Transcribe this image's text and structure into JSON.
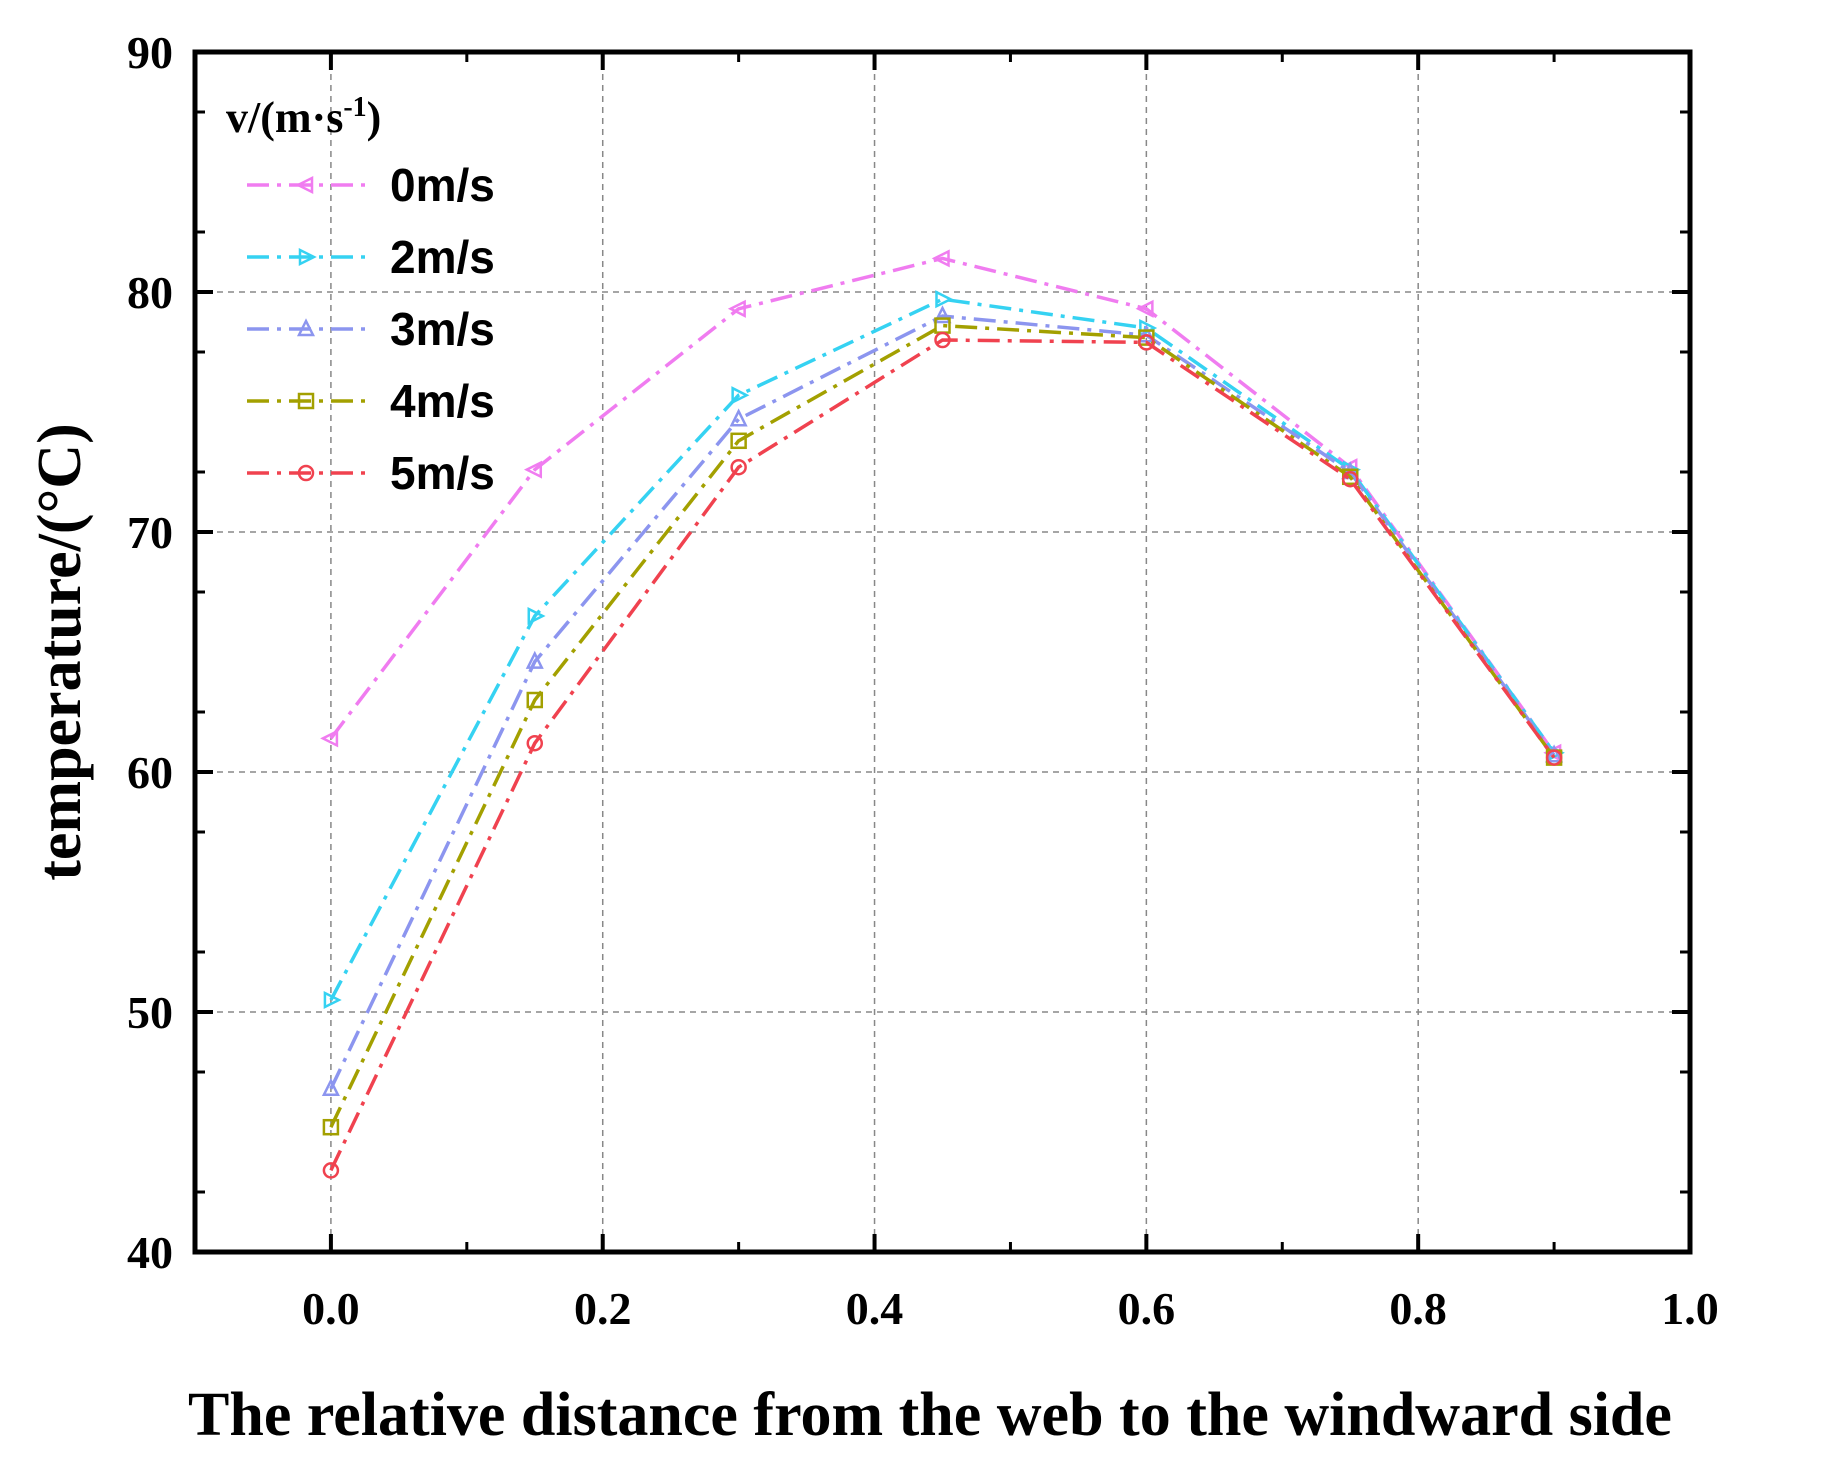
{
  "chart_data": {
    "type": "line",
    "title": "",
    "xlabel": "The relative distance from the web to the windward side",
    "ylabel": "temperature/(°C)",
    "xlim": [
      -0.1,
      1.0
    ],
    "ylim": [
      40,
      90
    ],
    "xticks": [
      "0.0",
      "0.2",
      "0.4",
      "0.6",
      "0.8",
      "1.0"
    ],
    "yticks": [
      "40",
      "50",
      "60",
      "70",
      "80",
      "90"
    ],
    "grid": true,
    "legend_position": "top-left",
    "legend_title": "v/(m·s",
    "legend_title_sup": "-1",
    "legend_title_end": ")",
    "x": [
      0.0,
      0.15,
      0.3,
      0.45,
      0.6,
      0.75,
      0.9
    ],
    "series": [
      {
        "name": "0m/s",
        "color": "#f07cf0",
        "marker": "triangle-left",
        "values": [
          61.4,
          72.6,
          79.3,
          81.4,
          79.3,
          72.7,
          60.8
        ]
      },
      {
        "name": "2m/s",
        "color": "#35d2f2",
        "marker": "triangle-right",
        "values": [
          50.5,
          66.5,
          75.7,
          79.7,
          78.5,
          72.6,
          60.8
        ]
      },
      {
        "name": "3m/s",
        "color": "#8c95ef",
        "marker": "triangle-up",
        "values": [
          46.8,
          64.6,
          74.7,
          79.0,
          78.2,
          72.5,
          60.7
        ]
      },
      {
        "name": "4m/s",
        "color": "#a3a000",
        "marker": "square",
        "values": [
          45.2,
          63.0,
          73.8,
          78.6,
          78.1,
          72.3,
          60.6
        ]
      },
      {
        "name": "5m/s",
        "color": "#f0424f",
        "marker": "circle",
        "values": [
          43.4,
          61.2,
          72.7,
          78.0,
          77.9,
          72.2,
          60.6
        ]
      }
    ]
  }
}
